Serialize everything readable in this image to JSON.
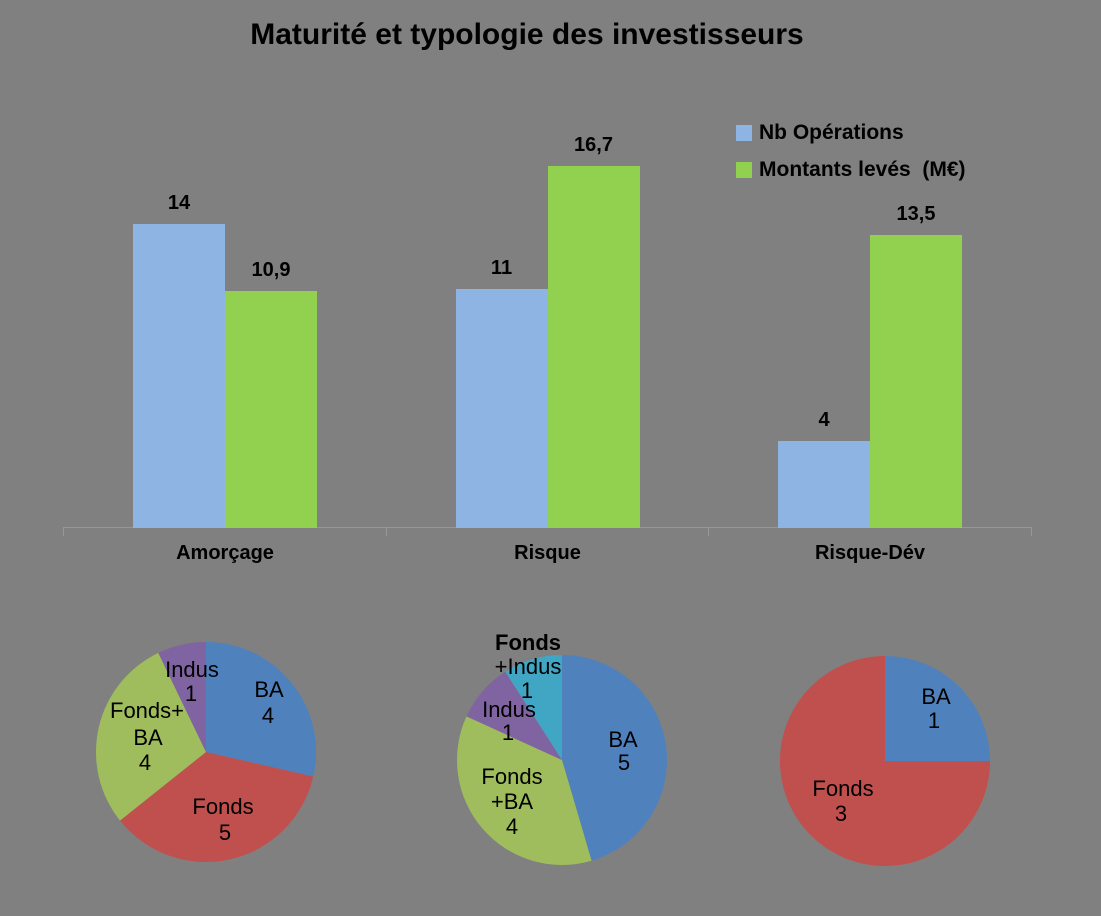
{
  "background_color": "#808080",
  "title": "Maturité et typologie des investisseurs",
  "legend": {
    "position": "top-right",
    "items": [
      {
        "label": "Nb Opérations",
        "color": "#8EB4E3"
      },
      {
        "label": "Montants levés  (M€)",
        "color": "#92D050"
      }
    ]
  },
  "chart_data": [
    {
      "type": "bar",
      "title": "Maturité et typologie des investisseurs",
      "categories": [
        "Amorçage",
        "Risque",
        "Risque-Dév"
      ],
      "series": [
        {
          "name": "Nb Opérations",
          "color": "#8EB4E3",
          "values": [
            14,
            11,
            4
          ],
          "value_labels": [
            "14",
            "11",
            "4"
          ]
        },
        {
          "name": "Montants levés (M€)",
          "color": "#92D050",
          "values": [
            10.9,
            16.7,
            13.5
          ],
          "value_labels": [
            "10,9",
            "16,7",
            "13,5"
          ]
        }
      ],
      "ylim": [
        0,
        18
      ],
      "grid": false,
      "y_axis_shown": false,
      "value_labels_shown": true,
      "legend_position": "top-right"
    },
    {
      "type": "pie",
      "position": "bottom-left",
      "total": 14,
      "slices": [
        {
          "label": "BA",
          "value": 4,
          "color": "#4F81BD",
          "label_lines": [
            "BA",
            "4"
          ]
        },
        {
          "label": "Fonds",
          "value": 5,
          "color": "#C0504D",
          "label_lines": [
            "Fonds",
            "5"
          ]
        },
        {
          "label": "Fonds+BA",
          "value": 4,
          "color": "#9FBD5C",
          "label_lines": [
            "Fonds+",
            "BA",
            "4"
          ]
        },
        {
          "label": "Indus",
          "value": 1,
          "color": "#8064A2",
          "label_lines": [
            "Indus",
            "1"
          ]
        }
      ]
    },
    {
      "type": "pie",
      "position": "bottom-center",
      "total": 11,
      "slices": [
        {
          "label": "BA",
          "value": 5,
          "color": "#4F81BD",
          "label_lines": [
            "BA",
            "5"
          ]
        },
        {
          "label": "Fonds+BA",
          "value": 4,
          "color": "#9FBD5C",
          "label_lines": [
            "Fonds",
            "+BA",
            "4"
          ]
        },
        {
          "label": "Indus",
          "value": 1,
          "color": "#8064A2",
          "label_lines": [
            "Indus",
            "1"
          ]
        },
        {
          "label": "Fonds+Indus",
          "value": 1,
          "color": "#41A6C3",
          "label_lines": [
            "Fonds",
            "+Indus",
            "1"
          ],
          "first_line_bold": true
        }
      ]
    },
    {
      "type": "pie",
      "position": "bottom-right",
      "total": 4,
      "slices": [
        {
          "label": "BA",
          "value": 1,
          "color": "#4F81BD",
          "label_lines": [
            "BA",
            "1"
          ]
        },
        {
          "label": "Fonds",
          "value": 3,
          "color": "#C0504D",
          "label_lines": [
            "Fonds",
            "3"
          ]
        }
      ]
    }
  ]
}
